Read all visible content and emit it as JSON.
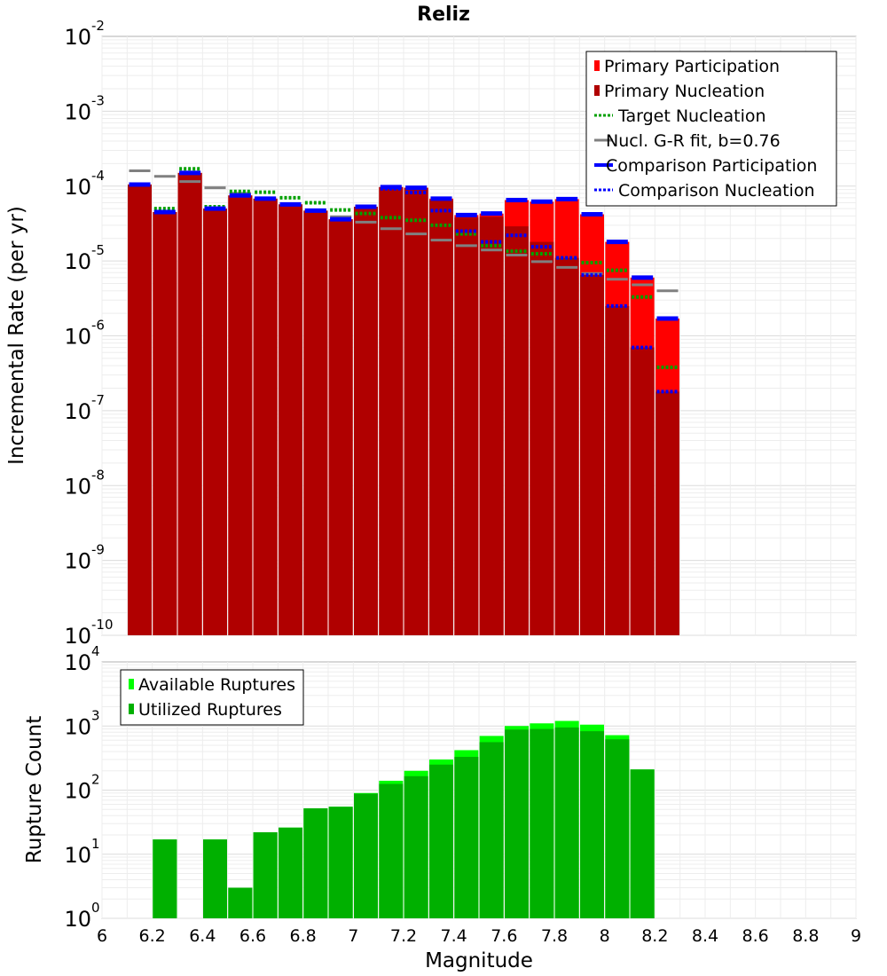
{
  "chart_data": [
    {
      "type": "bar",
      "title": "Reliz",
      "ylabel": "Incremental Rate (per yr)",
      "y_scale": "log",
      "ylim": [
        1e-10,
        0.01
      ],
      "xlim": [
        6,
        9
      ],
      "grid": true,
      "legend_position": "top-right",
      "y_ticks": [
        {
          "base": "10",
          "exp": "-10",
          "value": 1e-10
        },
        {
          "base": "10",
          "exp": "-9",
          "value": 1e-09
        },
        {
          "base": "10",
          "exp": "-8",
          "value": 1e-08
        },
        {
          "base": "10",
          "exp": "-7",
          "value": 1e-07
        },
        {
          "base": "10",
          "exp": "-6",
          "value": 1e-06
        },
        {
          "base": "10",
          "exp": "-5",
          "value": 1e-05
        },
        {
          "base": "10",
          "exp": "-4",
          "value": 0.0001
        },
        {
          "base": "10",
          "exp": "-3",
          "value": 0.001
        },
        {
          "base": "10",
          "exp": "-2",
          "value": 0.01
        }
      ],
      "x": [
        6.15,
        6.25,
        6.35,
        6.45,
        6.55,
        6.65,
        6.75,
        6.85,
        6.95,
        7.05,
        7.15,
        7.25,
        7.35,
        7.45,
        7.55,
        7.65,
        7.75,
        7.85,
        7.95,
        8.05,
        8.15,
        8.25
      ],
      "series": [
        {
          "name": "Primary Participation",
          "style": "bar",
          "color": "#ff0000",
          "values": [
            0.000105,
            4.5e-05,
            0.00015,
            5e-05,
            7.5e-05,
            6.8e-05,
            5.7e-05,
            4.7e-05,
            3.6e-05,
            5.3e-05,
            9.7e-05,
            9.5e-05,
            6.8e-05,
            4.1e-05,
            4.3e-05,
            6.5e-05,
            6.2e-05,
            6.7e-05,
            4.2e-05,
            1.8e-05,
            6e-06,
            1.7e-06
          ]
        },
        {
          "name": "Primary Nucleation",
          "style": "bar",
          "color": "#b00000",
          "values": [
            0.000105,
            4.5e-05,
            0.00015,
            5e-05,
            7.5e-05,
            6.8e-05,
            5.7e-05,
            4.7e-05,
            3.6e-05,
            5.3e-05,
            9.7e-05,
            9.5e-05,
            6.5e-05,
            3.8e-05,
            3.9e-05,
            2.9e-05,
            1.8e-05,
            1.1e-05,
            6.5e-06,
            2.5e-06,
            7e-07,
            1.8e-07
          ]
        },
        {
          "name": "Target Nucleation",
          "style": "dotted",
          "color": "#00a000",
          "values": [
            0.000105,
            5e-05,
            0.00017,
            5.3e-05,
            8.5e-05,
            8.3e-05,
            7e-05,
            6e-05,
            4.8e-05,
            4.3e-05,
            3.8e-05,
            3.5e-05,
            3e-05,
            2.3e-05,
            1.6e-05,
            1.35e-05,
            1.25e-05,
            1.1e-05,
            9.5e-06,
            7.5e-06,
            3.3e-06,
            3.8e-07
          ]
        },
        {
          "name": "Nucl. G-R fit, b=0.76",
          "style": "solid",
          "color": "#808080",
          "values": [
            0.00016,
            0.000135,
            0.000115,
            9.5e-05,
            8e-05,
            6.8e-05,
            5.7e-05,
            4.7e-05,
            3.9e-05,
            3.3e-05,
            2.7e-05,
            2.3e-05,
            1.9e-05,
            1.6e-05,
            1.4e-05,
            1.2e-05,
            9.8e-06,
            8.2e-06,
            6.8e-06,
            5.7e-06,
            4.8e-06,
            4e-06
          ]
        },
        {
          "name": "Comparison Participation",
          "style": "solid-thick",
          "color": "#0000ff",
          "values": [
            0.000105,
            4.5e-05,
            0.00015,
            5e-05,
            7.5e-05,
            6.8e-05,
            5.7e-05,
            4.7e-05,
            3.6e-05,
            5.3e-05,
            9.7e-05,
            9.5e-05,
            6.8e-05,
            4.1e-05,
            4.3e-05,
            6.5e-05,
            6.2e-05,
            6.7e-05,
            4.2e-05,
            1.8e-05,
            6e-06,
            1.7e-06
          ]
        },
        {
          "name": "Comparison Nucleation",
          "style": "dotted",
          "color": "#0000ff",
          "values": [
            0.000105,
            4.5e-05,
            0.00015,
            5e-05,
            7.5e-05,
            6.8e-05,
            5.7e-05,
            4.7e-05,
            3.6e-05,
            5.3e-05,
            9.2e-05,
            8.2e-05,
            4.7e-05,
            2.5e-05,
            1.8e-05,
            2.2e-05,
            1.55e-05,
            1.1e-05,
            6.5e-06,
            2.5e-06,
            7e-07,
            1.8e-07
          ]
        }
      ]
    },
    {
      "type": "bar",
      "xlabel": "Magnitude",
      "ylabel": "Rupture Count",
      "y_scale": "log",
      "ylim": [
        1,
        10000
      ],
      "xlim": [
        6,
        9
      ],
      "grid": true,
      "legend_position": "top-left",
      "y_ticks": [
        {
          "base": "10",
          "exp": "0",
          "value": 1
        },
        {
          "base": "10",
          "exp": "1",
          "value": 10
        },
        {
          "base": "10",
          "exp": "2",
          "value": 100
        },
        {
          "base": "10",
          "exp": "3",
          "value": 1000
        },
        {
          "base": "10",
          "exp": "4",
          "value": 10000
        }
      ],
      "x_ticks": [
        "6",
        "6.2",
        "6.4",
        "6.6",
        "6.8",
        "7",
        "7.2",
        "7.4",
        "7.6",
        "7.8",
        "8",
        "8.2",
        "8.4",
        "8.6",
        "8.8",
        "9"
      ],
      "x": [
        6.25,
        6.45,
        6.55,
        6.65,
        6.75,
        6.85,
        6.95,
        7.05,
        7.15,
        7.25,
        7.35,
        7.45,
        7.55,
        7.65,
        7.75,
        7.85,
        7.95,
        8.05,
        8.15
      ],
      "series": [
        {
          "name": "Available Ruptures",
          "color": "#00ff00",
          "values": [
            17,
            17,
            3,
            22,
            26,
            52,
            55,
            90,
            140,
            200,
            300,
            420,
            700,
            1000,
            1100,
            1200,
            1050,
            720,
            210
          ]
        },
        {
          "name": "Utilized Ruptures",
          "color": "#00b000",
          "values": [
            17,
            17,
            3,
            22,
            26,
            52,
            55,
            88,
            125,
            165,
            250,
            330,
            560,
            880,
            900,
            950,
            830,
            620,
            210
          ]
        }
      ]
    }
  ]
}
